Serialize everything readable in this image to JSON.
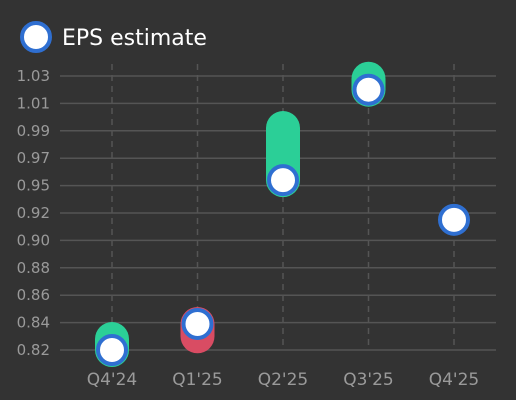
{
  "chart_data": {
    "type": "range-dot",
    "title": "",
    "xlabel": "",
    "ylabel": "",
    "categories": [
      "Q4'24",
      "Q1'25",
      "Q2'25",
      "Q3'25",
      "Q4'25"
    ],
    "legend": {
      "label": "EPS estimate",
      "position": "top-left"
    },
    "series": [
      {
        "name": "EPS estimate",
        "values": [
          0.82,
          0.839,
          0.954,
          1.02,
          0.915
        ]
      }
    ],
    "actual": [
      0.828,
      0.83,
      0.992,
      1.028,
      null
    ],
    "y_ticks": [
      "0.82",
      "0.84",
      "0.86",
      "0.88",
      "0.90",
      "0.92",
      "0.95",
      "0.97",
      "0.99",
      "1.01",
      "1.03"
    ],
    "grid": true,
    "colors": {
      "beat": "#2bcf97",
      "miss": "#d94c63",
      "marker_fill": "#ffffff",
      "marker_stroke": "#2f6fd1",
      "gridline": "#555555",
      "background": "#333333"
    }
  }
}
